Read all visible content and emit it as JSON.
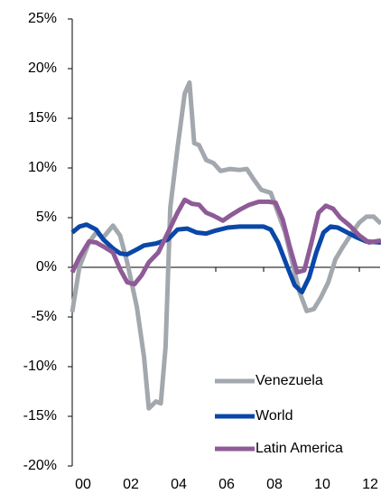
{
  "chart_data": {
    "type": "line",
    "xlim": [
      2000,
      2013
    ],
    "xticks": [
      {
        "value": 2000,
        "label": "00"
      },
      {
        "value": 2002,
        "label": "02"
      },
      {
        "value": 2004,
        "label": "04"
      },
      {
        "value": 2006,
        "label": "06"
      },
      {
        "value": 2008,
        "label": "08"
      },
      {
        "value": 2010,
        "label": "10"
      },
      {
        "value": 2012,
        "label": "12"
      }
    ],
    "ylim": [
      -20,
      25
    ],
    "yticks": [
      {
        "value": -20,
        "label": "-20%"
      },
      {
        "value": -15,
        "label": "-15%"
      },
      {
        "value": -10,
        "label": "-10%"
      },
      {
        "value": -5,
        "label": "-5%"
      },
      {
        "value": 0,
        "label": "0%"
      },
      {
        "value": 5,
        "label": "5%"
      },
      {
        "value": 10,
        "label": "10%"
      },
      {
        "value": 15,
        "label": "15%"
      },
      {
        "value": 20,
        "label": "20%"
      },
      {
        "value": 25,
        "label": "25%"
      }
    ],
    "series": [
      {
        "name": "Venezuela",
        "color": "#a2a8ad",
        "x": [
          2000,
          2000.3,
          2000.7,
          2001,
          2001.3,
          2001.7,
          2002,
          2002.3,
          2002.7,
          2003,
          2003.2,
          2003.5,
          2003.7,
          2003.9,
          2004.1,
          2004.4,
          2004.7,
          2004.9,
          2005.1,
          2005.3,
          2005.6,
          2005.9,
          2006.2,
          2006.6,
          2007,
          2007.3,
          2007.6,
          2007.9,
          2008.3,
          2008.6,
          2008.9,
          2009.2,
          2009.5,
          2009.8,
          2010.1,
          2010.4,
          2010.7,
          2011,
          2011.3,
          2011.7,
          2012,
          2012.3,
          2012.6,
          2012.9
        ],
        "values": [
          -4.5,
          0,
          2.5,
          3.5,
          3,
          4.2,
          3.2,
          0.5,
          -4,
          -9,
          -14.2,
          -13.5,
          -13.7,
          -8,
          6,
          12,
          17.5,
          18.6,
          12.5,
          12.3,
          10.8,
          10.5,
          9.7,
          9.9,
          9.8,
          9.9,
          8.8,
          7.8,
          7.5,
          5.5,
          3.5,
          0.5,
          -2.5,
          -4.4,
          -4.2,
          -3,
          -1.5,
          0.8,
          2,
          3.5,
          4.5,
          5.1,
          5.1,
          4.4
        ]
      },
      {
        "name": "World",
        "color": "#0a47a8",
        "x": [
          2000,
          2000.3,
          2000.6,
          2001,
          2001.3,
          2001.7,
          2002,
          2002.3,
          2002.7,
          2003,
          2003.5,
          2004,
          2004.4,
          2004.8,
          2005.2,
          2005.6,
          2006,
          2006.5,
          2007,
          2007.5,
          2008,
          2008.3,
          2008.6,
          2009,
          2009.3,
          2009.6,
          2009.9,
          2010.2,
          2010.5,
          2010.8,
          2011.1,
          2011.5,
          2011.9,
          2012.3,
          2012.9
        ],
        "values": [
          3.5,
          4.1,
          4.3,
          3.8,
          2.8,
          1.9,
          1.4,
          1.3,
          1.8,
          2.2,
          2.4,
          2.8,
          3.8,
          3.9,
          3.5,
          3.4,
          3.7,
          4.0,
          4.1,
          4.1,
          4.1,
          3.8,
          2.5,
          0,
          -1.8,
          -2.5,
          -1,
          1.5,
          3.5,
          4.1,
          4.0,
          3.5,
          3.0,
          2.6,
          2.5
        ]
      },
      {
        "name": "Latin America",
        "color": "#8e5b97",
        "x": [
          2000,
          2000.3,
          2000.7,
          2001,
          2001.3,
          2001.7,
          2002,
          2002.3,
          2002.6,
          2002.9,
          2003.2,
          2003.6,
          2004,
          2004.4,
          2004.7,
          2005,
          2005.3,
          2005.6,
          2005.9,
          2006.3,
          2006.6,
          2007,
          2007.4,
          2007.8,
          2008.2,
          2008.5,
          2008.8,
          2009.1,
          2009.4,
          2009.7,
          2010,
          2010.3,
          2010.6,
          2010.9,
          2011.2,
          2011.6,
          2012,
          2012.4,
          2012.9
        ],
        "values": [
          -0.5,
          1,
          2.6,
          2.5,
          2.1,
          1.5,
          -0.2,
          -1.5,
          -1.7,
          -0.8,
          0.5,
          1.5,
          3.5,
          5.5,
          6.8,
          6.4,
          6.3,
          5.5,
          5.2,
          4.7,
          5.2,
          5.8,
          6.3,
          6.6,
          6.6,
          6.5,
          4.8,
          2,
          -0.5,
          -0.3,
          2.5,
          5.5,
          6.2,
          5.9,
          5,
          4.2,
          3.2,
          2.5,
          2.7
        ]
      }
    ]
  }
}
